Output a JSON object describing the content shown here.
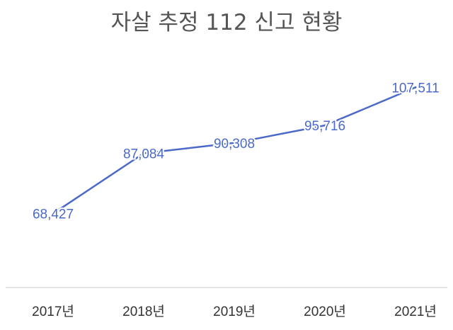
{
  "chart_data": {
    "type": "line",
    "title": "자살 추정 112 신고 현황",
    "categories": [
      "2017년",
      "2018년",
      "2019년",
      "2020년",
      "2021년"
    ],
    "series": [
      {
        "values": [
          68427,
          87084,
          90308,
          95716,
          107511
        ],
        "labels": [
          "68,427",
          "87,084",
          "90,308",
          "95,716",
          "107,511"
        ],
        "color": "#4a69c8"
      }
    ],
    "ylim": [
      60000,
      110000
    ],
    "grid": false,
    "legend": "none"
  }
}
